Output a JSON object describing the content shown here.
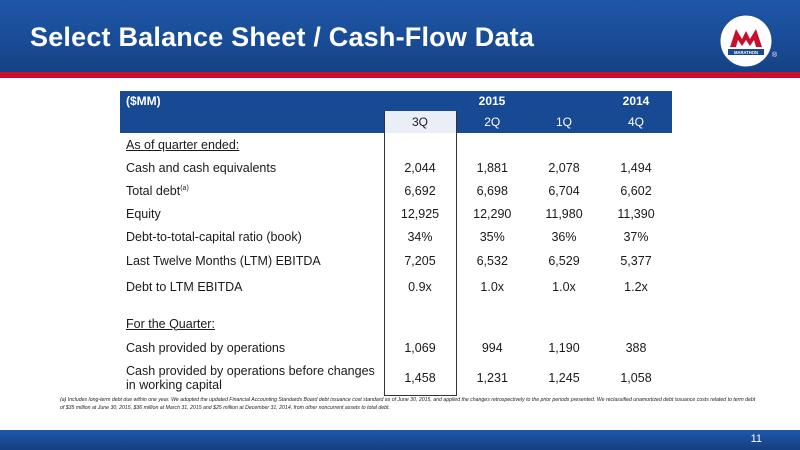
{
  "slide": {
    "title": "Select Balance Sheet / Cash-Flow Data",
    "page_number": "11",
    "logo_text": "MARATHON",
    "registered_mark": "®"
  },
  "table": {
    "unit_label": "($MM)",
    "year_2015": "2015",
    "year_2014": "2014",
    "quarters": [
      "3Q",
      "2Q",
      "1Q",
      "4Q"
    ],
    "section_quarter_end": "As of quarter ended:",
    "section_for_quarter": "For the Quarter:",
    "rows": [
      {
        "label": "Cash and cash equivalents",
        "values": [
          "2,044",
          "1,881",
          "2,078",
          "1,494"
        ]
      },
      {
        "label": "Total debt",
        "sup": "(a)",
        "values": [
          "6,692",
          "6,698",
          "6,704",
          "6,602"
        ]
      },
      {
        "label": "Equity",
        "values": [
          "12,925",
          "12,290",
          "11,980",
          "11,390"
        ]
      },
      {
        "label": "Debt-to-total-capital ratio (book)",
        "values": [
          "34%",
          "35%",
          "36%",
          "37%"
        ]
      },
      {
        "label": "Last Twelve Months (LTM) EBITDA",
        "values": [
          "7,205",
          "6,532",
          "6,529",
          "5,377"
        ]
      },
      {
        "label": "Debt to LTM EBITDA",
        "values": [
          "0.9x",
          "1.0x",
          "1.0x",
          "1.2x"
        ]
      }
    ],
    "quarter_rows": [
      {
        "label": "Cash provided by operations",
        "values": [
          "1,069",
          "994",
          "1,190",
          "388"
        ]
      },
      {
        "label": "Cash provided by operations before changes in working capital",
        "values": [
          "1,458",
          "1,231",
          "1,245",
          "1,058"
        ]
      }
    ]
  },
  "footnote": "(a) Includes long-term debt due within one year. We adopted the updated Financial Accounting Standards Board debt issuance cost standard as of June 30, 2015, and applied the changes retrospectively to the prior periods presented. We reclassified unamortized debt issuance costs related to term debt of $35 million at June 30, 2015, $36 million at March 31, 2015 and $25 million at December 31, 2014, from other noncurrent assets to total debt.",
  "colors": {
    "header_blue": "#184a93",
    "accent_red": "#c8102e"
  },
  "icons": {
    "logo": "marathon-logo-icon"
  }
}
